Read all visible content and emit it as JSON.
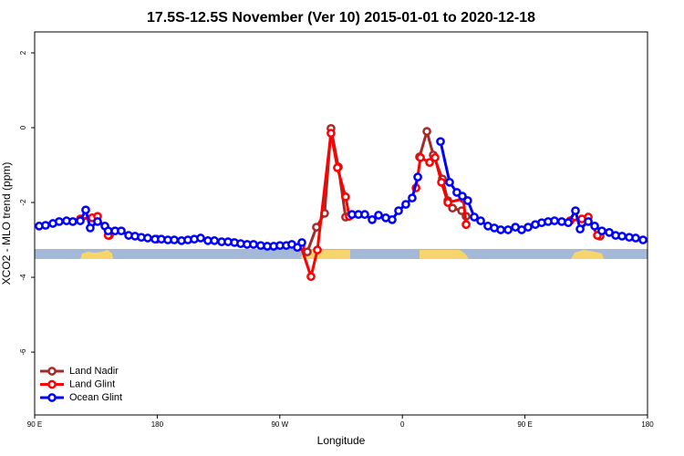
{
  "chart_data": {
    "type": "line",
    "title": "17.5S-12.5S November (Ver 10)   2015-01-01 to 2020-12-18",
    "x_label": "Longitude",
    "y_label": "XCO2 - MLO trend (ppm)",
    "xlim": [
      90,
      540
    ],
    "ylim": [
      -7.68,
      2.56
    ],
    "xticks": [
      {
        "value": 90,
        "label": "90 E"
      },
      {
        "value": 180,
        "label": "180"
      },
      {
        "value": 270,
        "label": "90 W"
      },
      {
        "value": 360,
        "label": "0"
      },
      {
        "value": 450,
        "label": "90 E"
      },
      {
        "value": 540,
        "label": "180"
      }
    ],
    "yticks": [
      2,
      0,
      -2,
      -4,
      -6
    ],
    "legend": "bottom-left",
    "series": [
      {
        "name": "Land Nadir",
        "color": "#a52a2a",
        "x": [
          144.9,
          null,
          290.2,
          296.9,
          302.9,
          307.6,
          313,
          318.3,
          null,
          372.6,
          378,
          382.7,
          389.4,
          393.4,
          396.8,
          403.5,
          406.8,
          null,
          505.2
        ],
        "values": [
          -2.88,
          null,
          -3.32,
          -2.66,
          -2.29,
          -0.02,
          -1.05,
          -2.39,
          null,
          -0.78,
          -0.1,
          -0.73,
          -1.37,
          -1.95,
          -2.15,
          -2.22,
          -2.37,
          null,
          -2.9
        ]
      },
      {
        "name": "Land Glint",
        "color": "#ff0000",
        "x": [
          123.5,
          132.2,
          136.2,
          144,
          null,
          179.7,
          null,
          285.5,
          292.9,
          297.6,
          307.6,
          312.3,
          318.3,
          321,
          null,
          370,
          373.3,
          380,
          384,
          388.7,
          393.4,
          404.8,
          406.8,
          null,
          483.1,
          491.8,
          496.5,
          503.2
        ],
        "values": [
          -2.44,
          -2.41,
          -2.37,
          -2.88,
          null,
          -2.98,
          null,
          -3.17,
          -3.98,
          -3.27,
          -0.15,
          -1.07,
          -1.85,
          -2.37,
          null,
          -1.61,
          -0.8,
          -0.93,
          -0.8,
          -1.46,
          -2.0,
          -1.9,
          -2.59,
          null,
          -2.49,
          -2.44,
          -2.39,
          -2.88
        ]
      },
      {
        "name": "Ocean Glint",
        "color": "#0000ff",
        "x": [
          93.3,
          98,
          103.4,
          108,
          113.4,
          118,
          123.5,
          127.5,
          130.8,
          136.2,
          141.6,
          144,
          149,
          153.6,
          159,
          163.7,
          168.3,
          173,
          178.4,
          183,
          187.8,
          192.5,
          197.8,
          202.5,
          207.2,
          211.9,
          217.2,
          222,
          227.3,
          232,
          236.7,
          241.3,
          246,
          250.7,
          256,
          260.8,
          265.5,
          270.1,
          274.8,
          278.8,
          282.9,
          286.2,
          null,
          323,
          327.7,
          332.4,
          337.8,
          342.5,
          347.8,
          352.5,
          357.2,
          362.5,
          367.2,
          371.3,
          null,
          388,
          394.7,
          400,
          404,
          408,
          412.8,
          417.5,
          422.8,
          427.5,
          432.2,
          437.6,
          443,
          447.6,
          452.3,
          457.6,
          462.3,
          467,
          471.7,
          477,
          481.8,
          487.1,
          490.5,
          496.5,
          501.2,
          506.5,
          511.9,
          516.6,
          521.3,
          526.6,
          531.3,
          536.7
        ],
        "values": [
          -2.63,
          -2.61,
          -2.56,
          -2.51,
          -2.49,
          -2.51,
          -2.49,
          -2.2,
          -2.68,
          -2.51,
          -2.63,
          -2.76,
          -2.76,
          -2.76,
          -2.88,
          -2.9,
          -2.93,
          -2.95,
          -2.98,
          -2.98,
          -3.0,
          -3.0,
          -3.02,
          -3.0,
          -2.98,
          -2.95,
          -3.02,
          -3.02,
          -3.05,
          -3.05,
          -3.07,
          -3.1,
          -3.12,
          -3.12,
          -3.15,
          -3.17,
          -3.17,
          -3.15,
          -3.15,
          -3.12,
          -3.2,
          -3.07,
          null,
          -2.32,
          -2.32,
          -2.32,
          -2.46,
          -2.34,
          -2.41,
          -2.46,
          -2.22,
          -2.05,
          -1.88,
          -1.32,
          null,
          -0.37,
          -1.46,
          -1.73,
          -1.83,
          -1.95,
          -2.39,
          -2.49,
          -2.63,
          -2.68,
          -2.73,
          -2.73,
          -2.66,
          -2.73,
          -2.66,
          -2.59,
          -2.54,
          -2.51,
          -2.49,
          -2.51,
          -2.54,
          -2.22,
          -2.71,
          -2.51,
          -2.63,
          -2.76,
          -2.8,
          -2.88,
          -2.9,
          -2.93,
          -2.95,
          -3.0
        ]
      }
    ]
  }
}
